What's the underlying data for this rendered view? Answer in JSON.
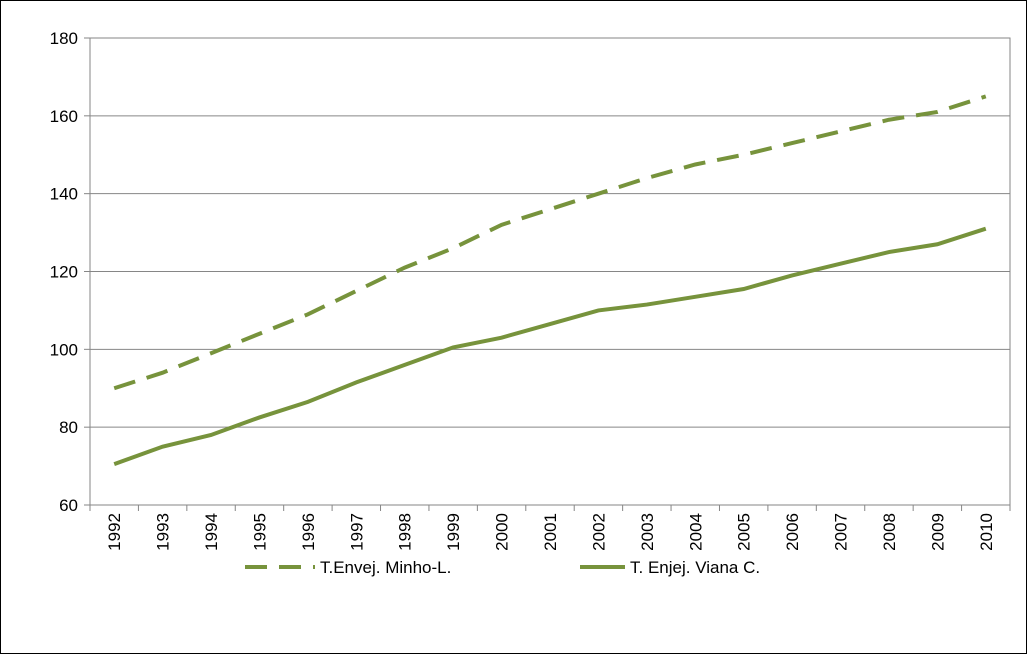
{
  "chart_data": {
    "type": "line",
    "categories": [
      "1992",
      "1993",
      "1994",
      "1995",
      "1996",
      "1997",
      "1998",
      "1999",
      "2000",
      "2001",
      "2002",
      "2003",
      "2004",
      "2005",
      "2006",
      "2007",
      "2008",
      "2009",
      "2010"
    ],
    "series": [
      {
        "name": "T.Envej. Minho-L.",
        "color": "#77933c",
        "dashed": true,
        "values": [
          90,
          94,
          99,
          104,
          109,
          115,
          121,
          126,
          132,
          136,
          140,
          144,
          147.5,
          150,
          153,
          156,
          159,
          161,
          165
        ]
      },
      {
        "name": "T. Enjej. Viana C.",
        "color": "#77933c",
        "dashed": false,
        "values": [
          70.5,
          75,
          78,
          82.5,
          86.5,
          91.5,
          96,
          100.5,
          103,
          106.5,
          110,
          111.5,
          113.5,
          115.5,
          119,
          122,
          125,
          127,
          131
        ]
      }
    ],
    "ylim": [
      60,
      180
    ],
    "yticks": [
      60,
      80,
      100,
      120,
      140,
      160,
      180
    ],
    "grid": true,
    "legend": "bottom"
  }
}
